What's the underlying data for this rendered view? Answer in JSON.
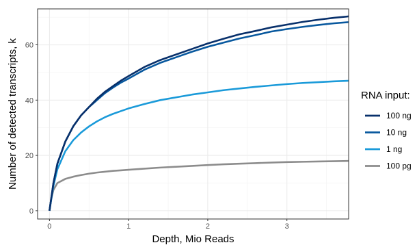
{
  "chart_data": {
    "type": "line",
    "xlabel": "Depth, Mio Reads",
    "ylabel": "Number of detected transcripts, k",
    "xlim": [
      -0.15,
      3.78
    ],
    "ylim": [
      -3,
      73
    ],
    "x_ticks": [
      0,
      1,
      2,
      3
    ],
    "y_ticks": [
      0,
      20,
      40,
      60
    ],
    "grid": true,
    "legend": {
      "title": "RNA input:",
      "position": "right"
    },
    "series": [
      {
        "name": "100 ng",
        "color": "#08306b",
        "x": [
          0.0,
          0.05,
          0.1,
          0.2,
          0.3,
          0.4,
          0.5,
          0.6,
          0.7,
          0.8,
          0.9,
          1.0,
          1.2,
          1.4,
          1.6,
          1.8,
          2.0,
          2.2,
          2.4,
          2.6,
          2.8,
          3.0,
          3.2,
          3.4,
          3.6,
          3.78
        ],
        "y": [
          0,
          10,
          17,
          25,
          30.5,
          34.5,
          37.5,
          40.5,
          43,
          45,
          47,
          48.7,
          52,
          54.5,
          56.5,
          58.5,
          60.5,
          62.2,
          63.8,
          65,
          66.3,
          67.3,
          68.3,
          69.1,
          69.8,
          70.3
        ]
      },
      {
        "name": "10 ng",
        "color": "#08589e",
        "x": [
          0.0,
          0.05,
          0.1,
          0.2,
          0.3,
          0.4,
          0.5,
          0.6,
          0.7,
          0.8,
          0.9,
          1.0,
          1.2,
          1.4,
          1.6,
          1.8,
          2.0,
          2.2,
          2.4,
          2.6,
          2.8,
          3.0,
          3.2,
          3.4,
          3.6,
          3.78
        ],
        "y": [
          0,
          10,
          17,
          25,
          30.5,
          34.5,
          37.5,
          40,
          42.5,
          44.5,
          46.3,
          47.8,
          51,
          53.5,
          55.5,
          57.5,
          59.3,
          60.8,
          62.3,
          63.5,
          64.8,
          65.7,
          66.5,
          67.2,
          67.8,
          68.2
        ]
      },
      {
        "name": "1 ng",
        "color": "#1a9ad9",
        "x": [
          0.0,
          0.05,
          0.1,
          0.2,
          0.3,
          0.4,
          0.5,
          0.6,
          0.7,
          0.8,
          0.9,
          1.0,
          1.2,
          1.4,
          1.6,
          1.8,
          2.0,
          2.2,
          2.4,
          2.6,
          2.8,
          3.0,
          3.2,
          3.4,
          3.6,
          3.78
        ],
        "y": [
          0,
          9,
          15,
          21.5,
          25.5,
          28.3,
          30.5,
          32.3,
          33.8,
          35,
          36,
          37,
          38.6,
          40,
          41,
          42,
          42.8,
          43.6,
          44.2,
          44.8,
          45.3,
          45.8,
          46.2,
          46.5,
          46.8,
          47
        ]
      },
      {
        "name": "100 pg",
        "color": "#8c8c8c",
        "x": [
          0.0,
          0.02,
          0.05,
          0.1,
          0.2,
          0.3,
          0.4,
          0.5,
          0.6,
          0.7,
          0.8,
          0.9,
          1.0,
          1.2,
          1.4,
          1.6,
          1.8,
          2.0,
          2.2,
          2.4,
          2.6,
          2.8,
          3.0,
          3.2,
          3.4,
          3.6,
          3.78
        ],
        "y": [
          0,
          4,
          7.5,
          10,
          11.5,
          12.3,
          12.9,
          13.4,
          13.8,
          14.1,
          14.4,
          14.6,
          14.8,
          15.2,
          15.6,
          15.9,
          16.2,
          16.5,
          16.8,
          17,
          17.2,
          17.4,
          17.6,
          17.7,
          17.8,
          17.9,
          18
        ]
      }
    ]
  }
}
